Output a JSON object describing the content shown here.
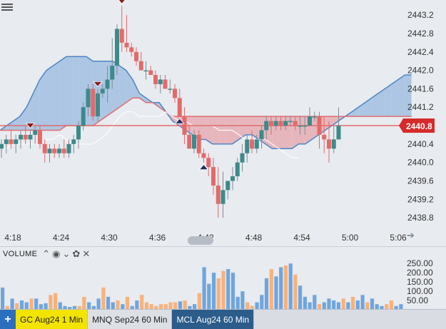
{
  "colors": {
    "bull": "#3d8a8a",
    "bear": "#e36a6a",
    "cloud_up": "#a9c4e2",
    "cloud_down": "#e6b3b8",
    "vol_blue": "#6fa5de",
    "vol_orange": "#f7b27a",
    "price_line": "#e36a6a",
    "price_tag": "#d72a2a"
  },
  "chart_data": [
    {
      "type": "candlestick",
      "symbol": "GC Aug24",
      "interval": "1 Min",
      "x_ticks": [
        "4:18",
        "4:24",
        "4:30",
        "4:36",
        "4:42",
        "4:48",
        "4:54",
        "5:00",
        "5:06"
      ],
      "y_ticks": [
        "2443.2",
        "2442.8",
        "2442.4",
        "2442.0",
        "2441.6",
        "2441.2",
        "2440.8",
        "2440.4",
        "2440.0",
        "2439.6",
        "2439.2",
        "2438.8"
      ],
      "ylim": [
        2438.6,
        2443.45
      ],
      "last_price": "2440.8",
      "candles": [
        [
          2440.3,
          2440.5,
          2440.1,
          2440.4
        ],
        [
          2440.4,
          2440.6,
          2440.2,
          2440.5
        ],
        [
          2440.5,
          2440.7,
          2440.3,
          2440.4
        ],
        [
          2440.4,
          2440.6,
          2440.2,
          2440.5
        ],
        [
          2440.5,
          2440.7,
          2440.3,
          2440.6
        ],
        [
          2440.6,
          2440.8,
          2440.4,
          2440.5
        ],
        [
          2440.5,
          2440.7,
          2440.3,
          2440.6
        ],
        [
          2440.6,
          2440.8,
          2440.4,
          2440.7
        ],
        [
          2440.7,
          2440.8,
          2440.3,
          2440.4
        ],
        [
          2440.4,
          2440.5,
          2440.0,
          2440.2
        ],
        [
          2440.2,
          2440.4,
          2440.0,
          2440.3
        ],
        [
          2440.3,
          2440.4,
          2440.1,
          2440.2
        ],
        [
          2440.2,
          2440.4,
          2440.1,
          2440.3
        ],
        [
          2440.3,
          2440.5,
          2440.1,
          2440.2
        ],
        [
          2440.2,
          2440.5,
          2440.1,
          2440.4
        ],
        [
          2440.4,
          2440.6,
          2440.2,
          2440.5
        ],
        [
          2440.5,
          2440.9,
          2440.3,
          2440.8
        ],
        [
          2440.8,
          2441.3,
          2440.7,
          2441.2
        ],
        [
          2441.2,
          2441.7,
          2441.0,
          2441.6
        ],
        [
          2441.6,
          2441.7,
          2440.9,
          2441.0
        ],
        [
          2441.0,
          2441.6,
          2440.9,
          2441.5
        ],
        [
          2441.5,
          2441.7,
          2441.4,
          2441.6
        ],
        [
          2441.6,
          2442.1,
          2441.3,
          2441.8
        ],
        [
          2441.8,
          2442.7,
          2441.6,
          2442.1
        ],
        [
          2442.1,
          2443.0,
          2441.9,
          2442.9
        ],
        [
          2442.9,
          2443.4,
          2442.4,
          2442.6
        ],
        [
          2442.6,
          2443.2,
          2442.4,
          2442.5
        ],
        [
          2442.5,
          2442.6,
          2442.3,
          2442.4
        ],
        [
          2442.4,
          2442.5,
          2442.1,
          2442.2
        ],
        [
          2442.2,
          2442.4,
          2442.0,
          2442.0
        ],
        [
          2442.0,
          2442.2,
          2441.8,
          2442.0
        ],
        [
          2442.0,
          2442.1,
          2441.9,
          2441.9
        ],
        [
          2441.9,
          2442.0,
          2441.6,
          2441.7
        ],
        [
          2441.7,
          2441.9,
          2441.5,
          2441.8
        ],
        [
          2441.8,
          2441.9,
          2441.6,
          2441.6
        ],
        [
          2441.6,
          2441.8,
          2441.5,
          2441.6
        ],
        [
          2441.6,
          2441.7,
          2441.3,
          2441.4
        ],
        [
          2441.4,
          2441.6,
          2441.0,
          2441.0
        ],
        [
          2441.0,
          2441.2,
          2440.4,
          2440.6
        ],
        [
          2440.6,
          2440.8,
          2440.3,
          2440.3
        ],
        [
          2440.3,
          2440.7,
          2440.2,
          2440.6
        ],
        [
          2440.6,
          2440.7,
          2440.1,
          2440.2
        ],
        [
          2440.2,
          2440.3,
          2440.0,
          2440.1
        ],
        [
          2440.1,
          2440.2,
          2439.7,
          2439.9
        ],
        [
          2439.9,
          2440.1,
          2439.3,
          2439.5
        ],
        [
          2439.5,
          2439.9,
          2438.8,
          2439.1
        ],
        [
          2439.1,
          2439.8,
          2438.8,
          2439.4
        ],
        [
          2439.4,
          2439.6,
          2439.2,
          2439.6
        ],
        [
          2439.6,
          2439.9,
          2439.4,
          2439.7
        ],
        [
          2439.7,
          2440.1,
          2439.6,
          2440.0
        ],
        [
          2440.0,
          2440.4,
          2439.8,
          2440.2
        ],
        [
          2440.2,
          2440.6,
          2440.0,
          2440.5
        ],
        [
          2440.5,
          2440.7,
          2440.2,
          2440.3
        ],
        [
          2440.3,
          2440.6,
          2440.2,
          2440.5
        ],
        [
          2440.5,
          2440.8,
          2440.3,
          2440.7
        ],
        [
          2440.7,
          2441.0,
          2440.5,
          2440.9
        ],
        [
          2440.9,
          2441.0,
          2440.6,
          2440.8
        ],
        [
          2440.8,
          2441.0,
          2440.7,
          2440.9
        ],
        [
          2440.9,
          2441.0,
          2440.7,
          2440.8
        ],
        [
          2440.8,
          2441.0,
          2440.7,
          2440.9
        ],
        [
          2440.9,
          2441.0,
          2440.8,
          2440.9
        ],
        [
          2440.9,
          2441.0,
          2440.7,
          2440.8
        ],
        [
          2440.8,
          2441.0,
          2440.6,
          2440.8
        ],
        [
          2440.8,
          2441.0,
          2440.6,
          2440.8
        ],
        [
          2440.8,
          2441.2,
          2440.8,
          2441.0
        ],
        [
          2441.0,
          2441.1,
          2440.9,
          2441.0
        ],
        [
          2441.0,
          2441.1,
          2440.3,
          2440.6
        ],
        [
          2440.6,
          2441.0,
          2440.2,
          2440.5
        ],
        [
          2440.5,
          2440.9,
          2440.0,
          2440.3
        ],
        [
          2440.3,
          2440.8,
          2440.2,
          2440.5
        ],
        [
          2440.5,
          2441.2,
          2440.5,
          2440.8
        ]
      ],
      "markers": [
        {
          "type": "sell",
          "bar": 6
        },
        {
          "type": "sell",
          "bar": 20
        },
        {
          "type": "sell",
          "bar": 25
        },
        {
          "type": "buy",
          "bar": 37
        },
        {
          "type": "buy",
          "bar": 42
        }
      ],
      "cloud": {
        "span_a": [
          2440.7,
          2440.8,
          2440.9,
          2441.0,
          2441.2,
          2441.5,
          2441.8,
          2442.0,
          2442.1,
          2442.2,
          2442.3,
          2442.3,
          2442.3,
          2442.3,
          2442.2,
          2442.2,
          2442.2,
          2442.2,
          2442.1,
          2442.0,
          2441.8,
          2441.5,
          2441.4,
          2441.3,
          2441.3,
          2441.1,
          2440.9,
          2440.8,
          2440.7,
          2440.6,
          2440.5,
          2440.5,
          2440.4,
          2440.4,
          2440.4,
          2440.4,
          2440.5,
          2440.6,
          2440.6,
          2440.5,
          2440.4,
          2440.3,
          2440.3,
          2440.3,
          2440.3,
          2440.4,
          2440.4,
          2440.5,
          2440.6,
          2440.7,
          2440.8,
          2440.9,
          2441.0,
          2441.1,
          2441.2,
          2441.3,
          2441.4,
          2441.5,
          2441.6,
          2441.7,
          2441.8,
          2441.9,
          2441.9
        ],
        "span_b": [
          2440.7,
          2440.7,
          2440.7,
          2440.7,
          2440.7,
          2440.7,
          2440.7,
          2440.7,
          2440.7,
          2440.7,
          2440.8,
          2440.8,
          2440.8,
          2440.8,
          2440.8,
          2440.9,
          2441.0,
          2441.1,
          2441.2,
          2441.3,
          2441.4,
          2441.4,
          2441.3,
          2441.3,
          2441.2,
          2441.1,
          2441.0,
          2441.0,
          2441.0,
          2441.0,
          2441.0,
          2441.0,
          2441.0,
          2441.0,
          2441.0,
          2441.0,
          2441.0,
          2441.0,
          2441.0,
          2441.0,
          2441.0,
          2441.0,
          2441.0,
          2441.0,
          2441.0,
          2441.0,
          2441.0,
          2441.0,
          2441.0,
          2441.0,
          2441.0,
          2441.0,
          2441.0,
          2441.0,
          2441.0,
          2441.0,
          2441.0,
          2441.0,
          2441.0,
          2441.0,
          2441.0,
          2441.0,
          2441.0
        ]
      },
      "white_line": [
        2440.3,
        2440.3,
        2440.4,
        2440.4,
        2440.4,
        2440.4,
        2440.4,
        2440.5,
        2440.5,
        2440.6,
        2440.5,
        2440.4,
        2440.4,
        2440.4,
        2440.4,
        2440.5,
        2440.6,
        2440.8,
        2441.0,
        2441.1,
        2441.1,
        2441.0,
        2441.0,
        2441.0,
        2441.0,
        2441.1,
        2441.0,
        2440.9,
        2440.9,
        2440.8,
        2440.8,
        2440.8,
        2440.8,
        2440.7,
        2440.7,
        2440.7,
        2440.6,
        2440.5,
        2440.5,
        2440.5,
        2440.5,
        2440.4,
        2440.3,
        2440.2,
        2440.1,
        2440.1
      ],
      "volume": {
        "y_ticks": [
          "250.00",
          "200.00",
          "150.00",
          "100.00",
          "50.00"
        ],
        "ylim": [
          0,
          270
        ],
        "label": "VOLUME",
        "values": [
          120,
          20,
          60,
          35,
          50,
          40,
          60,
          60,
          30,
          35,
          80,
          90,
          40,
          20,
          15,
          20,
          20,
          70,
          40,
          20,
          60,
          120,
          70,
          40,
          50,
          30,
          70,
          20,
          50,
          80,
          40,
          30,
          20,
          30,
          30,
          40,
          40,
          45,
          50,
          20,
          30,
          90,
          230,
          140,
          200,
          170,
          210,
          220,
          200,
          70,
          100,
          40,
          20,
          40,
          80,
          170,
          220,
          180,
          230,
          240,
          250,
          190,
          130,
          70,
          40,
          80,
          30,
          40,
          60,
          50,
          40,
          60,
          40,
          70,
          50,
          80,
          40,
          60,
          30,
          20,
          30,
          50,
          20,
          30
        ]
      }
    }
  ],
  "volume_header": {
    "title": "VOLUME"
  },
  "tabs": {
    "add": "+",
    "items": [
      "GC Aug24 1 Min",
      "MNQ Sep24 60 Min",
      "MCL Aug24 60 Min"
    ]
  }
}
